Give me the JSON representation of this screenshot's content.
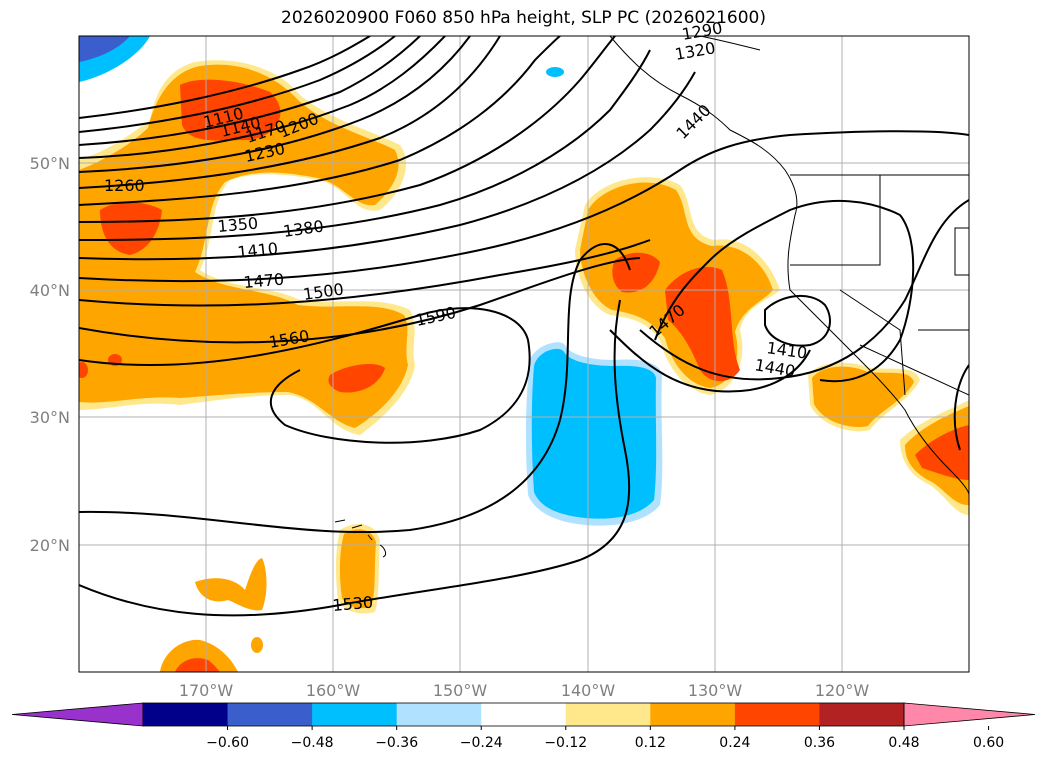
{
  "title": "2026020900 F060 850 hPa height, SLP PC (2026021600)",
  "latitudes": [
    "50°N",
    "40°N",
    "30°N",
    "20°N"
  ],
  "longitudes": [
    "170°W",
    "160°W",
    "150°W",
    "140°W",
    "130°W",
    "120°W"
  ],
  "contour_labels": [
    "1110",
    "1140",
    "1170",
    "1200",
    "1230",
    "1260",
    "1350",
    "1380",
    "1410",
    "1470",
    "1500",
    "1560",
    "1590",
    "1470",
    "1410",
    "1440",
    "1530",
    "1320",
    "1290",
    "1440"
  ],
  "colorbar": {
    "ticks": [
      "−0.60",
      "−0.48",
      "−0.36",
      "−0.24",
      "−0.12",
      "0.12",
      "0.24",
      "0.36",
      "0.48",
      "0.60"
    ],
    "colors": [
      "#9932cc",
      "#00008b",
      "#3a5fcd",
      "#00bfff",
      "#b0e2ff",
      "#ffffff",
      "#ffe88c",
      "#ffa500",
      "#ff4500",
      "#b22222",
      "#ff88aa"
    ],
    "extend": "both"
  }
}
